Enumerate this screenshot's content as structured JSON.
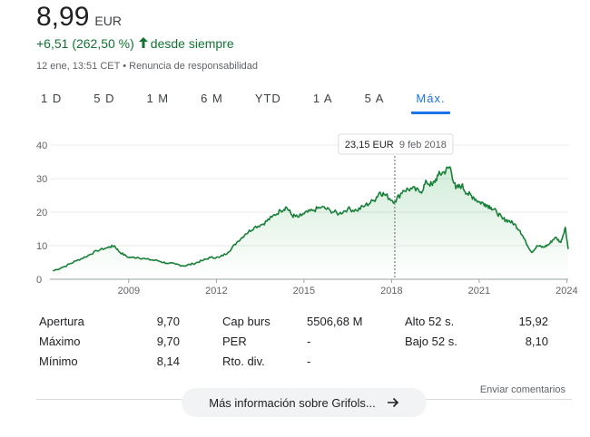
{
  "header": {
    "price": "8,99",
    "currency": "EUR",
    "change": "+6,51 (262,50 %)",
    "change_period": "desde siempre",
    "timestamp": "12 ene, 13:51 CET",
    "disclaimer": "Renuncia de responsabilidad",
    "meta_separator": "•"
  },
  "tabs": [
    {
      "label": "1 D"
    },
    {
      "label": "5 D"
    },
    {
      "label": "1 M"
    },
    {
      "label": "6 M"
    },
    {
      "label": "YTD"
    },
    {
      "label": "1 A"
    },
    {
      "label": "5 A"
    },
    {
      "label": "Máx."
    }
  ],
  "active_tab": "Máx.",
  "colors": {
    "line": "#188038",
    "positive": "#137333",
    "accent": "#1a73e8"
  },
  "chart_data": {
    "type": "area",
    "y_ticks": [
      "0",
      "10",
      "20",
      "30",
      "40"
    ],
    "x_ticks": [
      "2009",
      "2012",
      "2015",
      "2018",
      "2021",
      "2024"
    ],
    "ylim": [
      0,
      40
    ],
    "xlim": [
      2006.3,
      2024.05
    ],
    "tooltip": {
      "value": "23,15 EUR",
      "date": "9 feb 2018",
      "x": 2018.11,
      "y": 23.15
    },
    "series": [
      {
        "points": [
          [
            2006.4,
            2.5
          ],
          [
            2006.8,
            3.8
          ],
          [
            2007.2,
            5.5
          ],
          [
            2007.6,
            7.0
          ],
          [
            2007.9,
            8.5
          ],
          [
            2008.3,
            9.5
          ],
          [
            2008.5,
            10.0
          ],
          [
            2008.7,
            8.0
          ],
          [
            2009.0,
            6.5
          ],
          [
            2009.3,
            6.5
          ],
          [
            2009.6,
            6.0
          ],
          [
            2010.0,
            5.5
          ],
          [
            2010.3,
            4.8
          ],
          [
            2010.6,
            4.5
          ],
          [
            2010.9,
            4.0
          ],
          [
            2011.2,
            4.6
          ],
          [
            2011.5,
            5.5
          ],
          [
            2011.8,
            6.5
          ],
          [
            2012.1,
            6.5
          ],
          [
            2012.4,
            8.0
          ],
          [
            2012.7,
            11.0
          ],
          [
            2013.0,
            13.5
          ],
          [
            2013.3,
            15.5
          ],
          [
            2013.6,
            16.5
          ],
          [
            2013.9,
            18.5
          ],
          [
            2014.2,
            20.5
          ],
          [
            2014.4,
            21.5
          ],
          [
            2014.6,
            19.0
          ],
          [
            2014.8,
            18.5
          ],
          [
            2015.0,
            19.5
          ],
          [
            2015.3,
            20.5
          ],
          [
            2015.6,
            21.5
          ],
          [
            2015.9,
            20.5
          ],
          [
            2016.2,
            19.5
          ],
          [
            2016.5,
            21.0
          ],
          [
            2016.8,
            20.5
          ],
          [
            2017.1,
            22.0
          ],
          [
            2017.4,
            23.5
          ],
          [
            2017.6,
            26.0
          ],
          [
            2017.8,
            25.0
          ],
          [
            2018.11,
            23.15
          ],
          [
            2018.4,
            26.5
          ],
          [
            2018.7,
            27.0
          ],
          [
            2019.0,
            26.0
          ],
          [
            2019.2,
            29.0
          ],
          [
            2019.4,
            28.0
          ],
          [
            2019.6,
            31.0
          ],
          [
            2019.8,
            32.0
          ],
          [
            2020.0,
            33.5
          ],
          [
            2020.2,
            27.0
          ],
          [
            2020.4,
            28.0
          ],
          [
            2020.6,
            25.5
          ],
          [
            2020.8,
            24.5
          ],
          [
            2021.0,
            23.0
          ],
          [
            2021.2,
            22.5
          ],
          [
            2021.4,
            21.5
          ],
          [
            2021.6,
            20.0
          ],
          [
            2021.8,
            18.0
          ],
          [
            2022.0,
            17.5
          ],
          [
            2022.2,
            16.5
          ],
          [
            2022.4,
            14.5
          ],
          [
            2022.6,
            11.0
          ],
          [
            2022.8,
            8.0
          ],
          [
            2023.0,
            10.0
          ],
          [
            2023.2,
            9.5
          ],
          [
            2023.4,
            10.5
          ],
          [
            2023.6,
            12.5
          ],
          [
            2023.8,
            11.0
          ],
          [
            2023.95,
            15.5
          ],
          [
            2024.05,
            8.99
          ]
        ]
      }
    ]
  },
  "stats": [
    {
      "label": "Apertura",
      "value": "9,70"
    },
    {
      "label": "Máximo",
      "value": "9,70"
    },
    {
      "label": "Mínimo",
      "value": "8,14"
    },
    {
      "label": "Cap burs",
      "value": "5506,68 M"
    },
    {
      "label": "PER",
      "value": "-"
    },
    {
      "label": "Rto. div.",
      "value": "-"
    },
    {
      "label": "Alto 52 s.",
      "value": "15,92"
    },
    {
      "label": "Bajo 52 s.",
      "value": "8,10"
    }
  ],
  "feedback": "Enviar comentarios",
  "more_button": "Más información sobre Grifols..."
}
